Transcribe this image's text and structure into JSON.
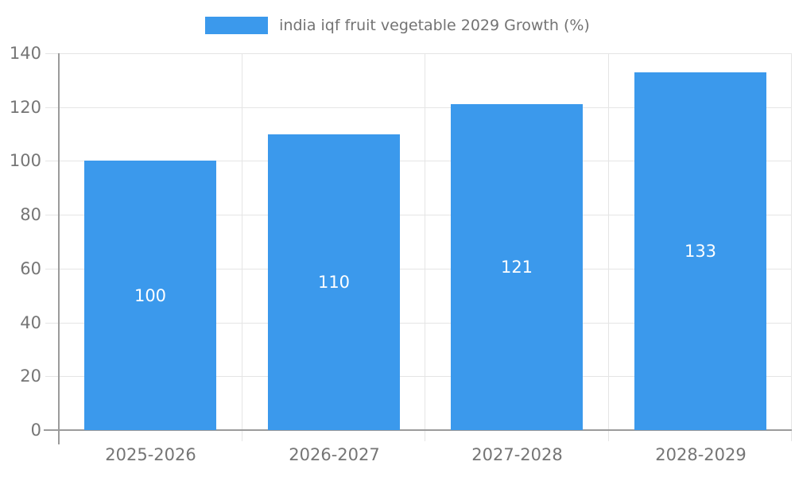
{
  "chart_data": {
    "type": "bar",
    "title": "india iqf fruit vegetable 2029 Growth (%)",
    "categories": [
      "2025-2026",
      "2026-2027",
      "2027-2028",
      "2028-2029"
    ],
    "values": [
      100,
      110,
      121,
      133
    ],
    "data_labels": [
      "100",
      "110",
      "121",
      "133"
    ],
    "xlabel": "",
    "ylabel": "",
    "ylim": [
      0,
      140
    ],
    "yticks": [
      0,
      20,
      40,
      60,
      80,
      100,
      120,
      140
    ],
    "grid": "horizontal and vertical category boundaries",
    "legend_position": "top-center"
  },
  "colors": {
    "bar": "#3B99EC",
    "legend_swatch": "#3B99EC",
    "bar_label_text": "#FFFFFF",
    "axis_text": "#757575",
    "legend_text": "#737373",
    "grid_line": "#E5E5E5",
    "axis_line": "#9B9B9B",
    "background": "#FFFFFF"
  }
}
